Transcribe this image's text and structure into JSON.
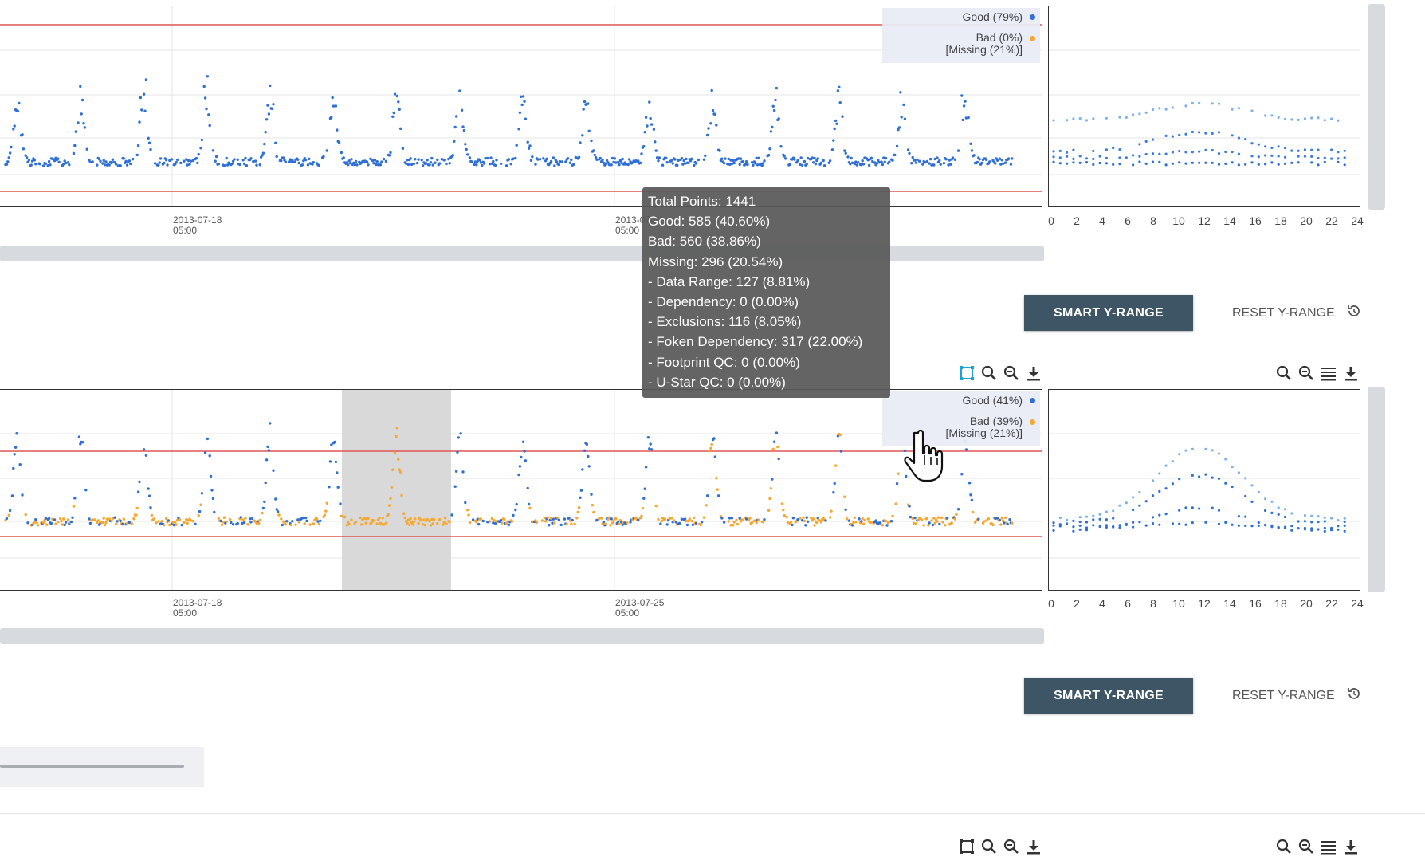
{
  "colors": {
    "good": "#2f6fd6",
    "bad": "#f7a72f",
    "limit_line": "#e05555",
    "button_bg": "#3e5566",
    "highlight": "#d9d9d9"
  },
  "chart_top": {
    "legend": {
      "good_label": "Good (79%)",
      "bad_label": "Bad (0%)",
      "missing_label": "[Missing (21%)]"
    },
    "x_tick_labels": [
      {
        "date": "2013-07-18",
        "time": "05:00"
      },
      {
        "date": "2013-07-25",
        "time": "05:00"
      }
    ],
    "hour_ticks": [
      "0",
      "2",
      "4",
      "6",
      "8",
      "10",
      "12",
      "14",
      "16",
      "18",
      "20",
      "22",
      "24"
    ],
    "smart_label": "SMART Y-RANGE",
    "reset_label": "RESET Y-RANGE"
  },
  "chart_bottom": {
    "legend": {
      "good_label": "Good (41%)",
      "bad_label": "Bad (39%)",
      "missing_label": "[Missing (21%)]"
    },
    "x_tick_labels": [
      {
        "date": "2013-07-18",
        "time": "05:00"
      },
      {
        "date": "2013-07-25",
        "time": "05:00"
      }
    ],
    "hour_ticks": [
      "0",
      "2",
      "4",
      "6",
      "8",
      "10",
      "12",
      "14",
      "16",
      "18",
      "20",
      "22",
      "24"
    ],
    "smart_label": "SMART Y-RANGE",
    "reset_label": "RESET Y-RANGE"
  },
  "tooltip": {
    "lines": [
      "Total Points: 1441",
      "Good: 585 (40.60%)",
      "Bad: 560 (38.86%)",
      "Missing: 296 (20.54%)",
      "- Data Range: 127 (8.81%)",
      "- Dependency: 0 (0.00%)",
      "- Exclusions: 116 (8.05%)",
      "- Foken Dependency: 317 (22.00%)",
      "- Footprint QC: 0 (0.00%)",
      "- U-Star QC: 0 (0.00%)"
    ]
  },
  "toolbar_icons": [
    "box-zoom-icon",
    "zoom-in-icon",
    "zoom-out-icon",
    "download-icon"
  ],
  "diurnal_toolbar_icons": [
    "zoom-in-icon",
    "zoom-out-icon",
    "menu-icon",
    "download-icon"
  ]
}
